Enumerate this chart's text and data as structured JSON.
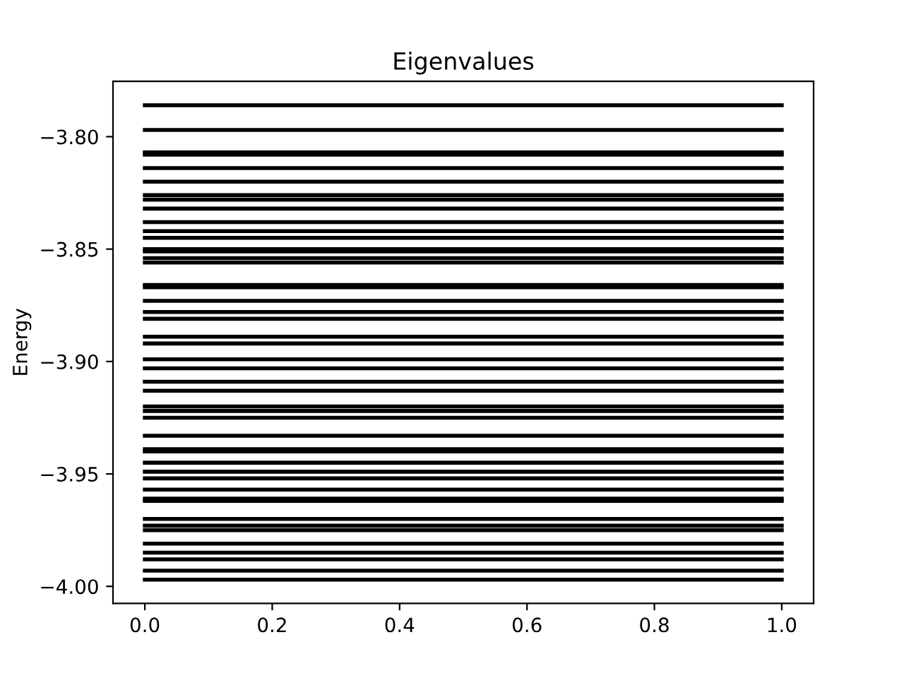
{
  "chart_data": {
    "type": "line",
    "title": "Eigenvalues",
    "ylabel": "Energy",
    "x": [
      0,
      1
    ],
    "grid": false,
    "legend": false,
    "marker": "none",
    "line_style": "solid",
    "xlim": [
      -0.05,
      1.05
    ],
    "ylim": [
      -4.0076,
      -3.7754
    ],
    "xticks": [
      {
        "value": 0,
        "label": "0.0"
      },
      {
        "value": 0.2,
        "label": "0.2"
      },
      {
        "value": 0.4,
        "label": "0.4"
      },
      {
        "value": 0.6,
        "label": "0.6"
      },
      {
        "value": 0.8,
        "label": "0.8"
      },
      {
        "value": 1,
        "label": "1.0"
      }
    ],
    "yticks": [
      {
        "value": -4.0,
        "label": "−4.00"
      },
      {
        "value": -3.95,
        "label": "−3.95"
      },
      {
        "value": -3.9,
        "label": "−3.90"
      },
      {
        "value": -3.85,
        "label": "−3.85"
      },
      {
        "value": -3.8,
        "label": "−3.80"
      }
    ],
    "series": [
      {
        "color": "#000000",
        "values": [
          -3.786,
          -3.786
        ]
      },
      {
        "color": "#000000",
        "values": [
          -3.797,
          -3.797
        ]
      },
      {
        "color": "#000000",
        "values": [
          -3.807,
          -3.807
        ]
      },
      {
        "color": "#000000",
        "values": [
          -3.808,
          -3.808
        ]
      },
      {
        "color": "#000000",
        "values": [
          -3.814,
          -3.814
        ]
      },
      {
        "color": "#000000",
        "values": [
          -3.82,
          -3.82
        ]
      },
      {
        "color": "#000000",
        "values": [
          -3.826,
          -3.826
        ]
      },
      {
        "color": "#000000",
        "values": [
          -3.828,
          -3.828
        ]
      },
      {
        "color": "#000000",
        "values": [
          -3.832,
          -3.832
        ]
      },
      {
        "color": "#000000",
        "values": [
          -3.838,
          -3.838
        ]
      },
      {
        "color": "#000000",
        "values": [
          -3.842,
          -3.842
        ]
      },
      {
        "color": "#000000",
        "values": [
          -3.845,
          -3.845
        ]
      },
      {
        "color": "#000000",
        "values": [
          -3.85,
          -3.85
        ]
      },
      {
        "color": "#000000",
        "values": [
          -3.851,
          -3.851
        ]
      },
      {
        "color": "#000000",
        "values": [
          -3.854,
          -3.854
        ]
      },
      {
        "color": "#000000",
        "values": [
          -3.856,
          -3.856
        ]
      },
      {
        "color": "#000000",
        "values": [
          -3.866,
          -3.866
        ]
      },
      {
        "color": "#000000",
        "values": [
          -3.867,
          -3.867
        ]
      },
      {
        "color": "#000000",
        "values": [
          -3.873,
          -3.873
        ]
      },
      {
        "color": "#000000",
        "values": [
          -3.878,
          -3.878
        ]
      },
      {
        "color": "#000000",
        "values": [
          -3.881,
          -3.881
        ]
      },
      {
        "color": "#000000",
        "values": [
          -3.889,
          -3.889
        ]
      },
      {
        "color": "#000000",
        "values": [
          -3.892,
          -3.892
        ]
      },
      {
        "color": "#000000",
        "values": [
          -3.899,
          -3.899
        ]
      },
      {
        "color": "#000000",
        "values": [
          -3.903,
          -3.903
        ]
      },
      {
        "color": "#000000",
        "values": [
          -3.909,
          -3.909
        ]
      },
      {
        "color": "#000000",
        "values": [
          -3.913,
          -3.913
        ]
      },
      {
        "color": "#000000",
        "values": [
          -3.92,
          -3.92
        ]
      },
      {
        "color": "#000000",
        "values": [
          -3.922,
          -3.922
        ]
      },
      {
        "color": "#000000",
        "values": [
          -3.925,
          -3.925
        ]
      },
      {
        "color": "#000000",
        "values": [
          -3.933,
          -3.933
        ]
      },
      {
        "color": "#000000",
        "values": [
          -3.939,
          -3.939
        ]
      },
      {
        "color": "#000000",
        "values": [
          -3.94,
          -3.94
        ]
      },
      {
        "color": "#000000",
        "values": [
          -3.945,
          -3.945
        ]
      },
      {
        "color": "#000000",
        "values": [
          -3.949,
          -3.949
        ]
      },
      {
        "color": "#000000",
        "values": [
          -3.952,
          -3.952
        ]
      },
      {
        "color": "#000000",
        "values": [
          -3.957,
          -3.957
        ]
      },
      {
        "color": "#000000",
        "values": [
          -3.961,
          -3.961
        ]
      },
      {
        "color": "#000000",
        "values": [
          -3.962,
          -3.962
        ]
      },
      {
        "color": "#000000",
        "values": [
          -3.97,
          -3.97
        ]
      },
      {
        "color": "#000000",
        "values": [
          -3.973,
          -3.973
        ]
      },
      {
        "color": "#000000",
        "values": [
          -3.975,
          -3.975
        ]
      },
      {
        "color": "#000000",
        "values": [
          -3.981,
          -3.981
        ]
      },
      {
        "color": "#000000",
        "values": [
          -3.985,
          -3.985
        ]
      },
      {
        "color": "#000000",
        "values": [
          -3.988,
          -3.988
        ]
      },
      {
        "color": "#000000",
        "values": [
          -3.993,
          -3.993
        ]
      },
      {
        "color": "#000000",
        "values": [
          -3.997,
          -3.997
        ]
      }
    ]
  }
}
